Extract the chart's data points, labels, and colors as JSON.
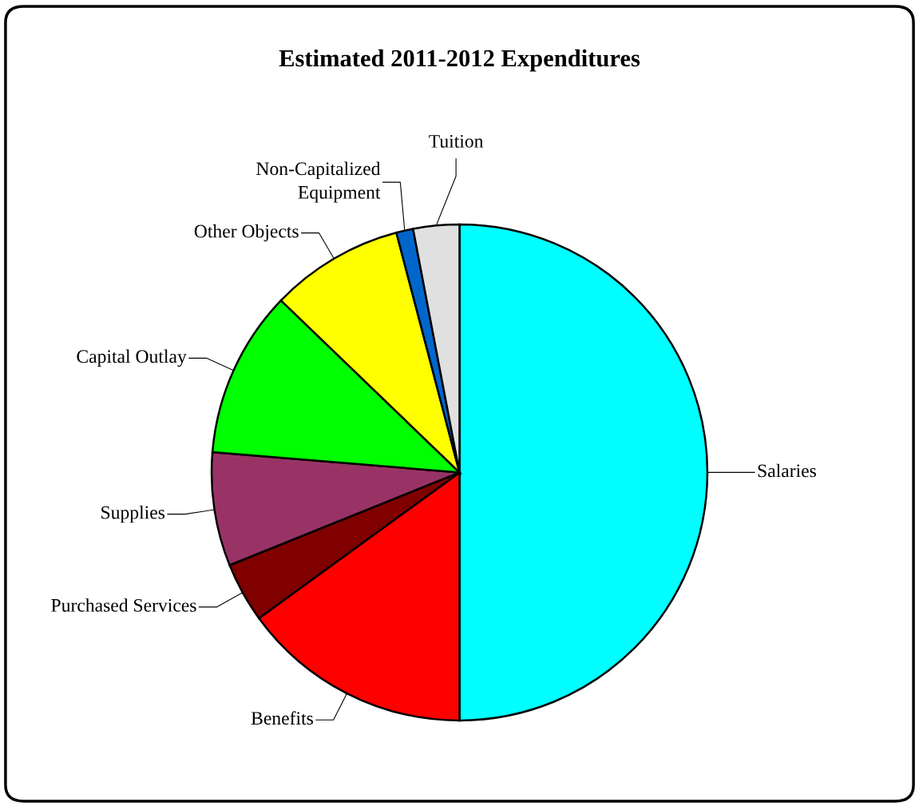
{
  "chart_data": {
    "type": "pie",
    "title": "Estimated 2011-2012 Expenditures",
    "categories": [
      "Salaries",
      "Benefits",
      "Purchased Services",
      "Supplies",
      "Capital Outlay",
      "Other Objects",
      "Non-Capitalized\nEquipment",
      "Tuition"
    ],
    "values": [
      50.0,
      15.0,
      3.9,
      7.4,
      10.9,
      8.7,
      1.1,
      3.0
    ],
    "colors": [
      "#00ffff",
      "#ff0000",
      "#800000",
      "#993366",
      "#00ff00",
      "#ffff00",
      "#0066cc",
      "#e0e0e0"
    ],
    "legend": false
  }
}
